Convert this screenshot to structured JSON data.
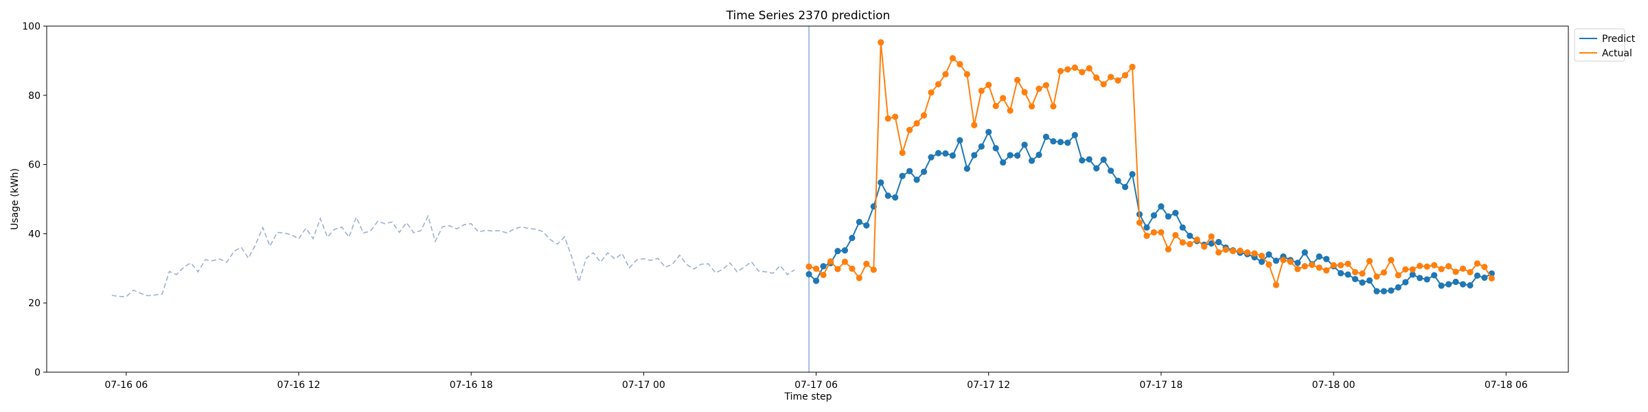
{
  "chart_data": {
    "type": "line",
    "title": "Time Series 2370 prediction",
    "xlabel": "Time step",
    "ylabel": "Usage (kWh)",
    "ylim": [
      0,
      100
    ],
    "xlim": [
      "2019-07-16T03:14",
      "2019-07-18T08:10"
    ],
    "yticks": [
      0,
      20,
      40,
      60,
      80,
      100
    ],
    "xticks": [
      {
        "t": "2019-07-16T06:00",
        "label": "07-16 06"
      },
      {
        "t": "2019-07-16T12:00",
        "label": "07-16 12"
      },
      {
        "t": "2019-07-16T18:00",
        "label": "07-16 18"
      },
      {
        "t": "2019-07-17T00:00",
        "label": "07-17 00"
      },
      {
        "t": "2019-07-17T06:00",
        "label": "07-17 06"
      },
      {
        "t": "2019-07-17T12:00",
        "label": "07-17 12"
      },
      {
        "t": "2019-07-17T18:00",
        "label": "07-17 18"
      },
      {
        "t": "2019-07-18T00:00",
        "label": "07-18 00"
      },
      {
        "t": "2019-07-18T06:00",
        "label": "07-18 06"
      }
    ],
    "grid": false,
    "legend_position": "top-right",
    "forecast_start": "2019-07-17T05:45",
    "history": {
      "start": "2019-07-16T05:30",
      "step_minutes": 15,
      "color": "#9db0cf",
      "values": [
        22.2,
        21.9,
        21.8,
        23.7,
        22.8,
        22.1,
        22.3,
        22.6,
        29.1,
        28.2,
        30.3,
        31.6,
        29.0,
        32.5,
        32.2,
        32.7,
        31.8,
        34.9,
        36.1,
        32.9,
        36.9,
        41.8,
        36.4,
        40.4,
        40.2,
        39.7,
        38.5,
        41.6,
        38.6,
        44.4,
        39.0,
        41.3,
        41.9,
        39.0,
        44.8,
        40.2,
        40.8,
        43.6,
        42.9,
        43.4,
        40.4,
        43.2,
        40.3,
        40.9,
        45.1,
        37.8,
        42.0,
        42.3,
        41.4,
        42.6,
        42.9,
        40.5,
        41.0,
        40.8,
        40.9,
        40.2,
        41.4,
        42.0,
        41.5,
        41.3,
        40.6,
        38.3,
        37.0,
        39.1,
        33.2,
        26.1,
        32.9,
        34.5,
        31.8,
        34.5,
        32.7,
        34.3,
        30.1,
        32.4,
        32.8,
        32.3,
        32.9,
        30.3,
        31.2,
        33.8,
        31.1,
        29.8,
        31.2,
        31.3,
        28.7,
        29.7,
        31.6,
        29.0,
        30.4,
        31.9,
        29.2,
        29.0,
        28.6,
        30.8,
        28.2,
        29.6
      ]
    },
    "forecast_x": {
      "start": "2019-07-17T05:45",
      "step_minutes": 15
    },
    "series": [
      {
        "name": "Predict",
        "color": "#1f77b4",
        "values": [
          28.3,
          26.4,
          30.6,
          31.5,
          35.0,
          35.2,
          38.8,
          43.4,
          42.4,
          47.9,
          54.8,
          51.0,
          50.5,
          56.7,
          58.1,
          55.6,
          57.9,
          62.1,
          63.3,
          63.2,
          62.6,
          67.0,
          58.8,
          62.7,
          65.2,
          69.4,
          64.7,
          60.6,
          62.7,
          62.6,
          65.7,
          61.1,
          62.8,
          68.0,
          66.7,
          66.5,
          66.3,
          68.5,
          61.2,
          61.5,
          58.9,
          61.4,
          58.2,
          55.3,
          53.5,
          57.2,
          45.6,
          41.8,
          45.3,
          47.9,
          45.0,
          46.0,
          41.8,
          39.4,
          37.9,
          36.8,
          37.2,
          37.6,
          36.0,
          35.2,
          34.5,
          34.1,
          33.2,
          31.9,
          34.0,
          32.2,
          33.4,
          32.4,
          31.6,
          34.6,
          31.2,
          33.4,
          32.7,
          30.6,
          28.6,
          28.2,
          26.9,
          25.9,
          26.5,
          23.4,
          23.4,
          23.6,
          24.5,
          26.0,
          28.2,
          27.2,
          26.8,
          28.0,
          25.0,
          25.4,
          26.1,
          25.4,
          25.1,
          27.9,
          27.3,
          28.5
        ]
      },
      {
        "name": "Actual",
        "color": "#ff7f0e",
        "values": [
          30.5,
          29.9,
          28.1,
          32.0,
          29.8,
          31.9,
          29.9,
          27.2,
          31.3,
          29.6,
          95.3,
          73.3,
          73.8,
          63.4,
          70.0,
          71.9,
          74.2,
          80.8,
          83.2,
          86.1,
          90.7,
          89.0,
          86.1,
          71.4,
          81.3,
          83.0,
          76.9,
          79.2,
          75.6,
          84.4,
          80.9,
          76.8,
          81.9,
          82.9,
          76.8,
          87.0,
          87.5,
          88.0,
          86.7,
          87.8,
          85.1,
          83.2,
          85.3,
          84.3,
          85.8,
          88.2,
          43.2,
          39.4,
          40.4,
          40.4,
          35.5,
          39.6,
          37.5,
          37.0,
          38.3,
          36.3,
          39.2,
          34.6,
          35.4,
          35.0,
          35.1,
          34.6,
          34.3,
          33.6,
          31.1,
          25.2,
          32.4,
          31.9,
          29.8,
          30.6,
          31.0,
          30.2,
          29.4,
          30.9,
          30.9,
          31.3,
          28.9,
          28.5,
          32.1,
          27.6,
          28.8,
          32.4,
          28.0,
          29.7,
          29.7,
          30.7,
          30.5,
          30.9,
          29.8,
          30.6,
          29.0,
          29.9,
          28.9,
          31.4,
          30.4,
          27.1
        ]
      }
    ]
  }
}
